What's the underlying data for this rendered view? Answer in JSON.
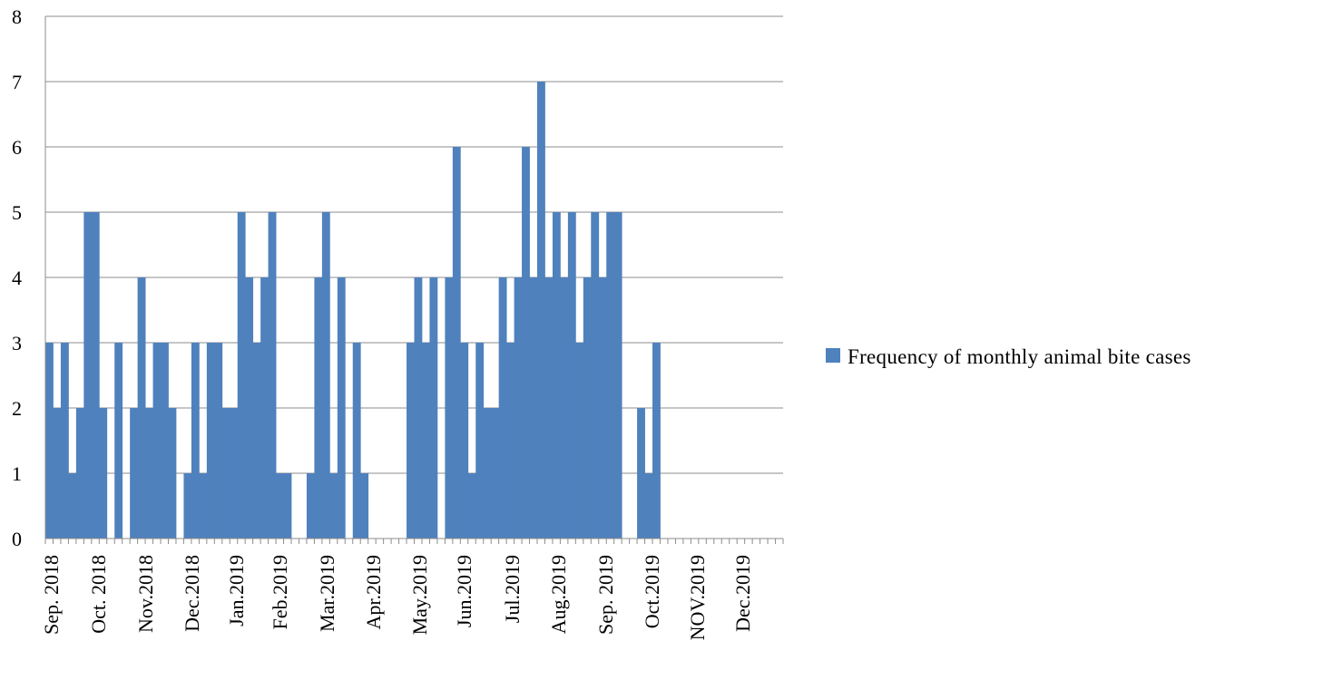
{
  "chart_data": {
    "type": "bar",
    "xlabel": "",
    "ylabel": "",
    "ylim": [
      0,
      8
    ],
    "yticks": [
      "0",
      "1",
      "2",
      "3",
      "4",
      "5",
      "6",
      "7",
      "8"
    ],
    "grid": true,
    "legend_position": "right",
    "x_tick_labels": [
      "Sep. 2018",
      "Oct. 2018",
      "Nov.2018",
      "Dec.2018",
      "Jan.2019",
      "Feb.2019",
      "Mar.2019",
      "Apr.2019",
      "May.2019",
      "Jun.2019",
      "Jul.2019",
      "Aug.2019",
      "Sep. 2019",
      "Oct.2019",
      "NOV.2019",
      "Dec.2019"
    ],
    "series": [
      {
        "name": "Frequency of monthly animal bite cases",
        "color": "#4F81BD",
        "values": [
          3,
          2,
          3,
          1,
          2,
          5,
          5,
          2,
          0,
          3,
          0,
          2,
          4,
          2,
          3,
          3,
          2,
          0,
          1,
          3,
          1,
          3,
          3,
          2,
          2,
          5,
          4,
          3,
          4,
          5,
          1,
          1,
          0,
          0,
          1,
          4,
          5,
          1,
          4,
          0,
          3,
          1,
          0,
          0,
          0,
          0,
          0,
          3,
          4,
          3,
          4,
          0,
          4,
          6,
          3,
          1,
          3,
          2,
          2,
          4,
          3,
          4,
          6,
          4,
          7,
          4,
          5,
          4,
          5,
          3,
          4,
          5,
          4,
          5,
          5,
          0,
          0,
          2,
          1,
          3,
          0,
          0,
          0,
          0,
          0,
          0,
          0,
          0,
          0,
          0,
          0,
          0,
          0,
          0,
          0,
          0
        ]
      }
    ]
  }
}
